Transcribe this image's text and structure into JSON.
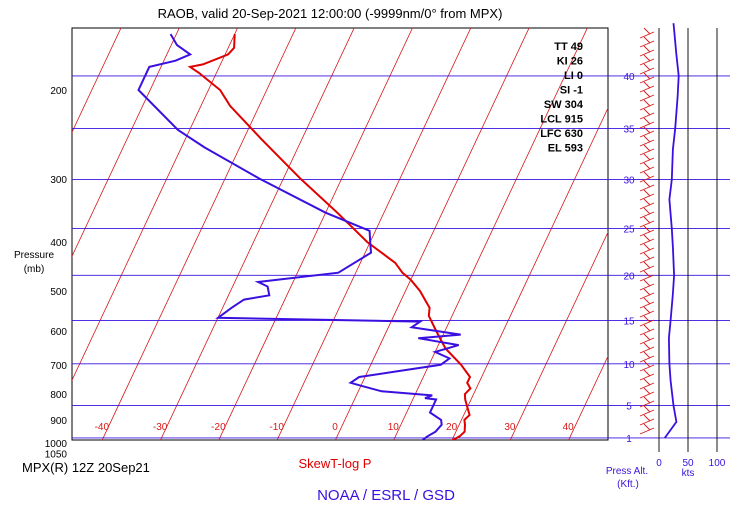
{
  "title": "RAOB, valid 20-Sep-2021 12:00:00 (-9999nm/0° from MPX)",
  "station_label": "MPX(R) 12Z 20Sep21",
  "plot_type_label": "SkewT-log P",
  "footer": "NOAA / ESRL / GSD",
  "pressure_axis": {
    "title_line1": "Pressure",
    "title_line2": "(mb)",
    "ticks": [
      "200",
      "300",
      "400",
      "500",
      "600",
      "700",
      "800",
      "900",
      "1000",
      "1050"
    ]
  },
  "temp_ticks": [
    "-40",
    "-30",
    "-20",
    "-10",
    "0",
    "10",
    "20",
    "30",
    "40"
  ],
  "height_axis": {
    "title_line1": "Press Alt.",
    "title_line2": "(Kft.)",
    "ticks": [
      "40",
      "35",
      "30",
      "25",
      "20",
      "15",
      "10",
      "5",
      "1"
    ]
  },
  "wind_speed_axis": {
    "unit": "kts",
    "ticks": [
      "0",
      "50",
      "100"
    ]
  },
  "indices": [
    {
      "name": "TT",
      "value": "49"
    },
    {
      "name": "KI",
      "value": "26"
    },
    {
      "name": "LI",
      "value": "0"
    },
    {
      "name": "SI",
      "value": "-1"
    },
    {
      "name": "SW",
      "value": "304"
    },
    {
      "name": "LCL",
      "value": "915"
    },
    {
      "name": "LFC",
      "value": "630"
    },
    {
      "name": "EL",
      "value": "593"
    }
  ],
  "colors": {
    "temperature": "#e00000",
    "dewpoint": "#3a10e0",
    "isotherm": "#d81818",
    "height_line": "#3a10e0",
    "text": "#000000",
    "footer": "#3a10e0",
    "plot_label": "#e00000"
  },
  "chart_data": {
    "type": "line",
    "chart_kind": "skew-t log-p",
    "y_scale": "log pressure",
    "ylim_mb": [
      1050,
      150
    ],
    "series": [
      {
        "name": "temperature",
        "points": [
          {
            "p": 1000,
            "t": 19.5
          },
          {
            "p": 970,
            "t": 21.0
          },
          {
            "p": 950,
            "t": 21.5
          },
          {
            "p": 920,
            "t": 21.0
          },
          {
            "p": 900,
            "t": 20.5
          },
          {
            "p": 880,
            "t": 21.0
          },
          {
            "p": 850,
            "t": 20.0
          },
          {
            "p": 820,
            "t": 19.0
          },
          {
            "p": 800,
            "t": 18.5
          },
          {
            "p": 780,
            "t": 19.0
          },
          {
            "p": 760,
            "t": 18.0
          },
          {
            "p": 740,
            "t": 18.0
          },
          {
            "p": 700,
            "t": 15.5
          },
          {
            "p": 650,
            "t": 11.5
          },
          {
            "p": 600,
            "t": 8.5
          },
          {
            "p": 560,
            "t": 6.0
          },
          {
            "p": 540,
            "t": 5.5
          },
          {
            "p": 500,
            "t": 2.5
          },
          {
            "p": 475,
            "t": 0.0
          },
          {
            "p": 460,
            "t": -2.0
          },
          {
            "p": 440,
            "t": -4.0
          },
          {
            "p": 400,
            "t": -10.5
          },
          {
            "p": 350,
            "t": -18.0
          },
          {
            "p": 300,
            "t": -27.0
          },
          {
            "p": 250,
            "t": -37.0
          },
          {
            "p": 215,
            "t": -45.0
          },
          {
            "p": 200,
            "t": -48.0
          },
          {
            "p": 185,
            "t": -53.0
          },
          {
            "p": 180,
            "t": -55.0
          },
          {
            "p": 178,
            "t": -53.0
          },
          {
            "p": 170,
            "t": -49.5
          },
          {
            "p": 165,
            "t": -49.0
          },
          {
            "p": 155,
            "t": -50.0
          }
        ]
      },
      {
        "name": "dewpoint",
        "points": [
          {
            "p": 1000,
            "t": 14.5
          },
          {
            "p": 970,
            "t": 15.5
          },
          {
            "p": 950,
            "t": 16.5
          },
          {
            "p": 920,
            "t": 17.0
          },
          {
            "p": 900,
            "t": 16.5
          },
          {
            "p": 870,
            "t": 14.0
          },
          {
            "p": 850,
            "t": 14.0
          },
          {
            "p": 820,
            "t": 14.0
          },
          {
            "p": 815,
            "t": 12.0
          },
          {
            "p": 805,
            "t": 13.0
          },
          {
            "p": 790,
            "t": 4.0
          },
          {
            "p": 770,
            "t": 0.0
          },
          {
            "p": 760,
            "t": -2.0
          },
          {
            "p": 740,
            "t": -1.0
          },
          {
            "p": 720,
            "t": 5.5
          },
          {
            "p": 700,
            "t": 12.0
          },
          {
            "p": 680,
            "t": 13.0
          },
          {
            "p": 660,
            "t": 10.0
          },
          {
            "p": 640,
            "t": 13.5
          },
          {
            "p": 620,
            "t": 6.0
          },
          {
            "p": 610,
            "t": 13.0
          },
          {
            "p": 590,
            "t": 4.0
          },
          {
            "p": 575,
            "t": 5.0
          },
          {
            "p": 565,
            "t": -30.0
          },
          {
            "p": 540,
            "t": -28.5
          },
          {
            "p": 520,
            "t": -27.0
          },
          {
            "p": 510,
            "t": -23.0
          },
          {
            "p": 490,
            "t": -24.0
          },
          {
            "p": 480,
            "t": -26.0
          },
          {
            "p": 460,
            "t": -13.0
          },
          {
            "p": 420,
            "t": -9.0
          },
          {
            "p": 400,
            "t": -10.0
          },
          {
            "p": 380,
            "t": -11.0
          },
          {
            "p": 350,
            "t": -20.0
          },
          {
            "p": 300,
            "t": -34.0
          },
          {
            "p": 260,
            "t": -46.0
          },
          {
            "p": 240,
            "t": -52.0
          },
          {
            "p": 200,
            "t": -62.0
          },
          {
            "p": 180,
            "t": -62.0
          },
          {
            "p": 175,
            "t": -58.0
          },
          {
            "p": 170,
            "t": -56.0
          },
          {
            "p": 163,
            "t": -59.0
          },
          {
            "p": 155,
            "t": -61.0
          }
        ]
      }
    ],
    "wind_speed_profile_kts": [
      {
        "h_kft": 1,
        "kts": 10
      },
      {
        "h_kft": 3,
        "kts": 30
      },
      {
        "h_kft": 5,
        "kts": 25
      },
      {
        "h_kft": 8,
        "kts": 20
      },
      {
        "h_kft": 10,
        "kts": 18
      },
      {
        "h_kft": 13,
        "kts": 17
      },
      {
        "h_kft": 15,
        "kts": 20
      },
      {
        "h_kft": 18,
        "kts": 24
      },
      {
        "h_kft": 20,
        "kts": 26
      },
      {
        "h_kft": 23,
        "kts": 24
      },
      {
        "h_kft": 25,
        "kts": 22
      },
      {
        "h_kft": 28,
        "kts": 18
      },
      {
        "h_kft": 30,
        "kts": 22
      },
      {
        "h_kft": 33,
        "kts": 24
      },
      {
        "h_kft": 35,
        "kts": 28
      },
      {
        "h_kft": 38,
        "kts": 32
      },
      {
        "h_kft": 40,
        "kts": 34
      },
      {
        "h_kft": 42,
        "kts": 30
      },
      {
        "h_kft": 45,
        "kts": 25
      }
    ]
  }
}
